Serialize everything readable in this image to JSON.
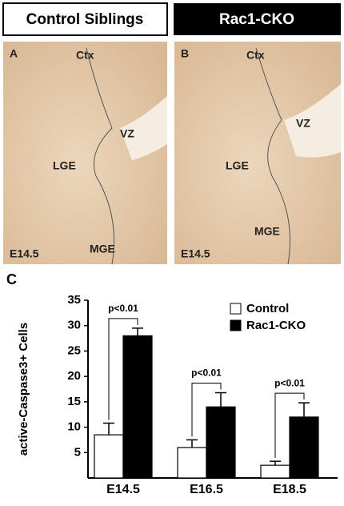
{
  "headers": [
    "Control Siblings",
    "Rac1-CKO"
  ],
  "panels": [
    {
      "letter": "A",
      "labels": {
        "ctx": "Ctx",
        "vz": "VZ",
        "lge": "LGE",
        "mge": "MGE",
        "stage": "E14.5"
      }
    },
    {
      "letter": "B",
      "labels": {
        "ctx": "Ctx",
        "vz": "VZ",
        "lge": "LGE",
        "mge": "MGE",
        "stage": "E14.5"
      }
    }
  ],
  "chart_data": {
    "type": "bar",
    "panel_letter": "C",
    "y_label": "active-Caspase3+ Cells",
    "categories": [
      "E14.5",
      "E16.5",
      "E18.5"
    ],
    "series": [
      {
        "name": "Control",
        "color": "#ffffff",
        "values": [
          8.5,
          6,
          2.5
        ],
        "errors": [
          2.3,
          1.5,
          0.8
        ]
      },
      {
        "name": "Rac1-CKO",
        "color": "#000000",
        "values": [
          28,
          14,
          12
        ],
        "errors": [
          1.5,
          2.8,
          2.8
        ]
      }
    ],
    "annotations": [
      "p<0.01",
      "p<0.01",
      "p<0.01"
    ],
    "ylim": [
      0,
      35
    ],
    "yticks": [
      5,
      10,
      15,
      20,
      25,
      30,
      35
    ],
    "legend": "top-right"
  }
}
